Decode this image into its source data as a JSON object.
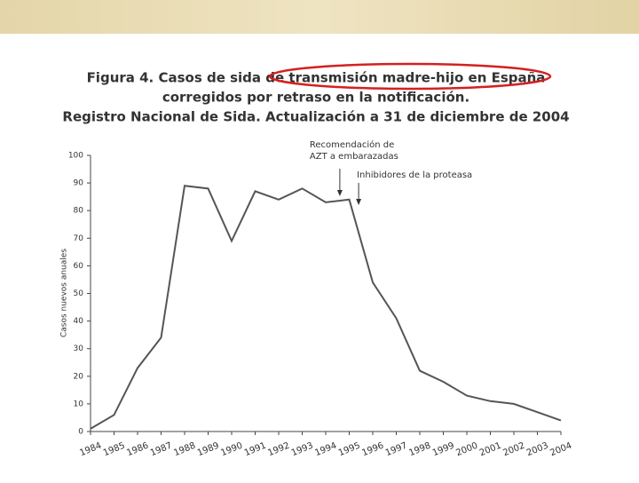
{
  "chart_data": {
    "type": "line",
    "title": [
      "Figura 4. Casos de sida de transmisión madre-hijo en España",
      "corregidos por retraso en la notificación.",
      "Registro Nacional de Sida. Actualización a 31 de diciembre de 2004"
    ],
    "y_label": "Casos nuevos anuales",
    "annotations": [
      {
        "text": [
          "Recomendación de",
          "AZT a embarazadas"
        ],
        "x": 1994.6
      },
      {
        "text": [
          "Inhibidores de la proteasa"
        ],
        "x": 1995.4
      }
    ],
    "x": [
      1984,
      1985,
      1986,
      1987,
      1988,
      1989,
      1990,
      1991,
      1992,
      1993,
      1994,
      1995,
      1996,
      1997,
      1998,
      1999,
      2000,
      2001,
      2002,
      2003,
      2004
    ],
    "values": [
      1,
      6,
      23,
      34,
      89,
      88,
      69,
      87,
      84,
      88,
      83,
      84,
      54,
      41,
      22,
      18,
      13,
      11,
      10,
      7,
      4
    ],
    "color": "#555555",
    "xlim": [
      1984,
      2004
    ],
    "xticks": [
      1984,
      1985,
      1986,
      1987,
      1988,
      1989,
      1990,
      1991,
      1992,
      1993,
      1994,
      1995,
      1996,
      1997,
      1998,
      1999,
      2000,
      2001,
      2002,
      2003,
      2004
    ],
    "ylim": [
      0,
      100
    ],
    "yticks": [
      0,
      10,
      20,
      30,
      40,
      50,
      60,
      70,
      80,
      90,
      100
    ]
  }
}
